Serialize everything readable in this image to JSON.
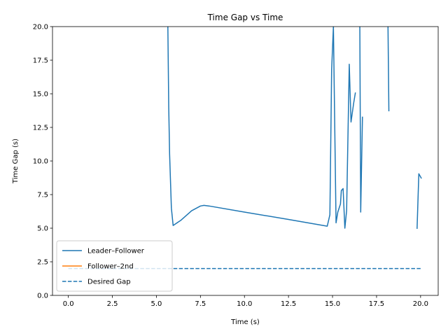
{
  "chart_data": {
    "type": "line",
    "title": "Time Gap vs Time",
    "xlabel": "Time (s)",
    "ylabel": "Time Gap (s)",
    "xlim": [
      -0.9,
      21.0
    ],
    "ylim": [
      0,
      20
    ],
    "xticks": [
      "0.0",
      "2.5",
      "5.0",
      "7.5",
      "10.0",
      "12.5",
      "15.0",
      "17.5",
      "20.0"
    ],
    "yticks": [
      "0.0",
      "2.5",
      "5.0",
      "7.5",
      "10.0",
      "12.5",
      "15.0",
      "17.5",
      "20.0"
    ],
    "grid": false,
    "legend_position": "lower-left",
    "series": [
      {
        "name": "Leader–Follower",
        "color": "#1f77b4",
        "style": "solid",
        "segments": [
          [
            [
              5.65,
              20.0
            ],
            [
              5.7,
              14.0
            ],
            [
              5.75,
              10.5
            ],
            [
              5.85,
              6.5
            ],
            [
              5.95,
              5.2
            ],
            [
              6.4,
              5.6
            ],
            [
              7.0,
              6.3
            ],
            [
              7.5,
              6.65
            ],
            [
              7.7,
              6.7
            ],
            [
              8.0,
              6.65
            ],
            [
              10.0,
              6.2
            ],
            [
              12.5,
              5.65
            ],
            [
              14.7,
              5.15
            ],
            [
              14.85,
              6.0
            ],
            [
              14.95,
              16.8
            ],
            [
              15.05,
              20.0
            ]
          ],
          [
            [
              15.05,
              20.0
            ],
            [
              15.2,
              5.4
            ],
            [
              15.3,
              6.2
            ],
            [
              15.45,
              6.8
            ],
            [
              15.5,
              7.8
            ],
            [
              15.6,
              7.95
            ],
            [
              15.7,
              5.0
            ],
            [
              15.8,
              6.3
            ],
            [
              15.95,
              17.2
            ],
            [
              16.05,
              12.9
            ],
            [
              16.2,
              14.3
            ],
            [
              16.3,
              15.1
            ]
          ],
          [
            [
              16.55,
              20.0
            ],
            [
              16.6,
              6.2
            ],
            [
              16.7,
              13.3
            ]
          ],
          [
            [
              18.15,
              20.0
            ],
            [
              18.2,
              13.7
            ]
          ],
          [
            [
              19.8,
              4.95
            ],
            [
              19.9,
              9.05
            ],
            [
              20.05,
              8.7
            ]
          ]
        ]
      },
      {
        "name": "Follower–2nd",
        "color": "#ff7f0e",
        "style": "solid",
        "segments": []
      },
      {
        "name": "Desired Gap",
        "color": "#1f77b4",
        "style": "dashed",
        "segments": [
          [
            [
              0.0,
              2.0
            ],
            [
              20.0,
              2.0
            ]
          ]
        ]
      }
    ]
  }
}
